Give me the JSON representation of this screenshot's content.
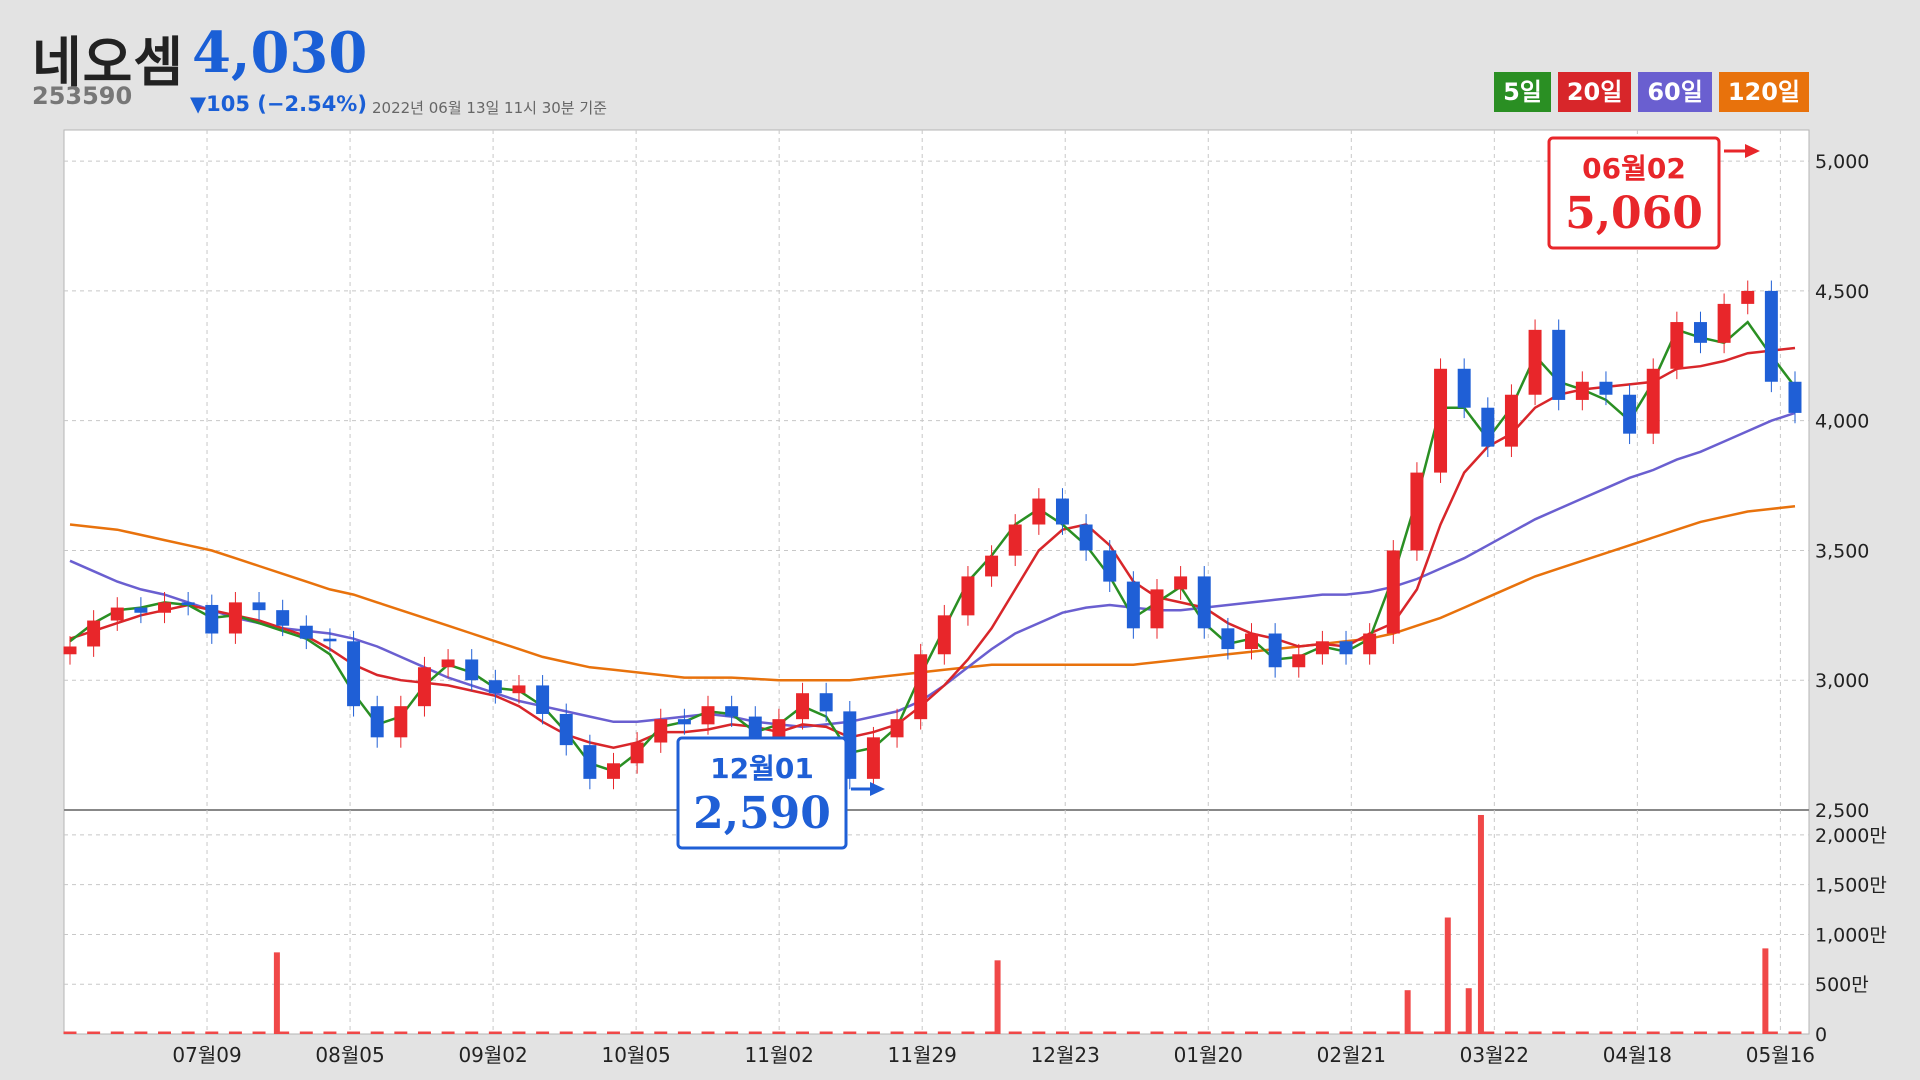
{
  "stock": {
    "name": "네오셈",
    "price": "4,030",
    "code": "253590",
    "change": "▼105 (−2.54%)",
    "as_of": "2022년 06월 13일 11시 30분 기준"
  },
  "legend": [
    {
      "label": "5일",
      "color": "#2a8f23"
    },
    {
      "label": "20일",
      "color": "#d8262a"
    },
    {
      "label": "60일",
      "color": "#6a5fd0"
    },
    {
      "label": "120일",
      "color": "#e8720c"
    }
  ],
  "annotations": {
    "high": {
      "date": "06월02",
      "value": "5,060"
    },
    "low": {
      "date": "12월01",
      "value": "2,590"
    }
  },
  "colors": {
    "up": "#e8262a",
    "down": "#1f5fd6",
    "volume": "#f04848",
    "grid": "#c8c8c8"
  },
  "chart_data": {
    "type": "candlestick",
    "price_axis": {
      "ticks": [
        "5,000",
        "4,500",
        "4,000",
        "3,500",
        "3,000",
        "2,500"
      ],
      "values": [
        5000,
        4500,
        4000,
        3500,
        3000,
        2500
      ],
      "ylim": [
        2500,
        5120
      ]
    },
    "volume_axis": {
      "ticks": [
        "2,000만",
        "1,500만",
        "1,000만",
        "500만",
        "0"
      ],
      "values": [
        2000,
        1500,
        1000,
        500,
        0
      ],
      "unit": "만",
      "ylim": [
        0,
        2250
      ]
    },
    "x_ticks": [
      "07월09",
      "08월05",
      "09월02",
      "10월05",
      "11월02",
      "11월29",
      "12월23",
      "01월20",
      "02월21",
      "03월22",
      "04월18",
      "05월16"
    ],
    "close_series": [
      3130,
      3230,
      3280,
      3260,
      3300,
      3290,
      3180,
      3300,
      3270,
      3210,
      3160,
      3150,
      2900,
      2780,
      2900,
      3050,
      3080,
      3000,
      2950,
      2980,
      2870,
      2750,
      2620,
      2680,
      2760,
      2850,
      2830,
      2900,
      2860,
      2780,
      2850,
      2950,
      2880,
      2620,
      2780,
      2850,
      3100,
      3250,
      3400,
      3480,
      3600,
      3700,
      3600,
      3500,
      3380,
      3200,
      3350,
      3400,
      3200,
      3120,
      3180,
      3050,
      3100,
      3150,
      3100,
      3180,
      3500,
      3800,
      4200,
      4050,
      3900,
      4100,
      4350,
      4080,
      4150,
      4100,
      3950,
      4200,
      4380,
      4300,
      4450,
      4500,
      4150,
      4030
    ],
    "ma5": [
      3150,
      3220,
      3270,
      3280,
      3300,
      3290,
      3240,
      3250,
      3220,
      3190,
      3160,
      3100,
      2950,
      2830,
      2860,
      2980,
      3060,
      3030,
      2970,
      2960,
      2900,
      2800,
      2680,
      2650,
      2720,
      2820,
      2840,
      2880,
      2870,
      2800,
      2830,
      2900,
      2860,
      2720,
      2740,
      2820,
      3020,
      3200,
      3380,
      3480,
      3600,
      3660,
      3600,
      3520,
      3400,
      3240,
      3300,
      3360,
      3220,
      3140,
      3160,
      3080,
      3090,
      3130,
      3110,
      3160,
      3400,
      3700,
      4050,
      4050,
      3930,
      4050,
      4250,
      4150,
      4120,
      4080,
      4000,
      4150,
      4350,
      4320,
      4300,
      4380,
      4250,
      4130
    ],
    "ma20": [
      3160,
      3190,
      3220,
      3250,
      3270,
      3290,
      3270,
      3250,
      3230,
      3200,
      3170,
      3120,
      3060,
      3020,
      3000,
      2990,
      2980,
      2960,
      2940,
      2900,
      2840,
      2790,
      2760,
      2740,
      2760,
      2800,
      2800,
      2810,
      2830,
      2820,
      2800,
      2830,
      2820,
      2780,
      2800,
      2830,
      2900,
      2980,
      3080,
      3200,
      3350,
      3500,
      3580,
      3600,
      3520,
      3380,
      3320,
      3300,
      3280,
      3220,
      3180,
      3160,
      3130,
      3140,
      3130,
      3180,
      3220,
      3350,
      3600,
      3800,
      3900,
      3950,
      4050,
      4100,
      4120,
      4130,
      4140,
      4150,
      4200,
      4210,
      4230,
      4260,
      4270,
      4280
    ],
    "ma60": [
      3460,
      3420,
      3380,
      3350,
      3330,
      3300,
      3270,
      3240,
      3220,
      3200,
      3190,
      3180,
      3160,
      3130,
      3090,
      3050,
      3010,
      2980,
      2950,
      2920,
      2900,
      2880,
      2860,
      2840,
      2840,
      2850,
      2860,
      2870,
      2860,
      2840,
      2830,
      2820,
      2830,
      2840,
      2860,
      2880,
      2920,
      2980,
      3050,
      3120,
      3180,
      3220,
      3260,
      3280,
      3290,
      3280,
      3270,
      3270,
      3280,
      3290,
      3300,
      3310,
      3320,
      3330,
      3330,
      3340,
      3360,
      3390,
      3430,
      3470,
      3520,
      3570,
      3620,
      3660,
      3700,
      3740,
      3780,
      3810,
      3850,
      3880,
      3920,
      3960,
      4000,
      4030
    ],
    "ma120": [
      3600,
      3590,
      3580,
      3560,
      3540,
      3520,
      3500,
      3470,
      3440,
      3410,
      3380,
      3350,
      3330,
      3300,
      3270,
      3240,
      3210,
      3180,
      3150,
      3120,
      3090,
      3070,
      3050,
      3040,
      3030,
      3020,
      3010,
      3010,
      3010,
      3005,
      3000,
      3000,
      3000,
      3000,
      3010,
      3020,
      3030,
      3040,
      3050,
      3060,
      3060,
      3060,
      3060,
      3060,
      3060,
      3060,
      3070,
      3080,
      3090,
      3100,
      3110,
      3120,
      3130,
      3140,
      3150,
      3160,
      3180,
      3210,
      3240,
      3280,
      3320,
      3360,
      3400,
      3430,
      3460,
      3490,
      3520,
      3550,
      3580,
      3610,
      3630,
      3650,
      3660,
      3670
    ],
    "volume_spikes": [
      {
        "x_frac": 0.122,
        "value": 820
      },
      {
        "x_frac": 0.535,
        "value": 740
      },
      {
        "x_frac": 0.77,
        "value": 440
      },
      {
        "x_frac": 0.793,
        "value": 1170
      },
      {
        "x_frac": 0.805,
        "value": 460
      },
      {
        "x_frac": 0.812,
        "value": 2200
      },
      {
        "x_frac": 0.975,
        "value": 860
      }
    ]
  }
}
